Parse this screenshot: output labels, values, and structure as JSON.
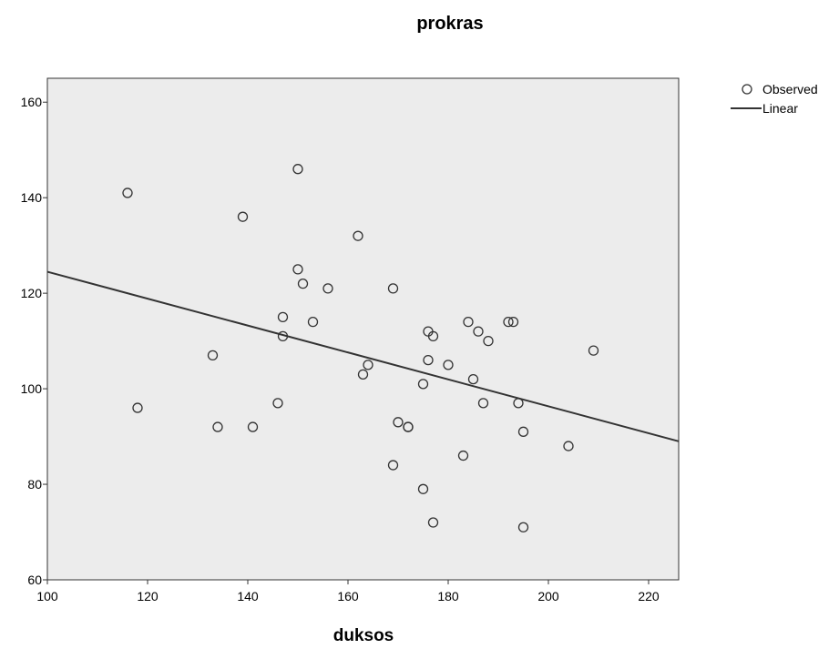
{
  "chart_data": {
    "type": "scatter",
    "title": "prokras",
    "xlabel": "duksos",
    "ylabel": "",
    "xlim": [
      100,
      226
    ],
    "ylim": [
      60,
      165
    ],
    "xticks": [
      100,
      120,
      140,
      160,
      180,
      200,
      220
    ],
    "yticks": [
      60,
      80,
      100,
      120,
      140,
      160
    ],
    "grid": false,
    "legend_position": "top-right",
    "background_color": "#ececec",
    "series": [
      {
        "name": "Observed",
        "marker": "open-circle",
        "points": [
          [
            116,
            141
          ],
          [
            118,
            96
          ],
          [
            133,
            107
          ],
          [
            134,
            92
          ],
          [
            139,
            136
          ],
          [
            141,
            92
          ],
          [
            146,
            97
          ],
          [
            147,
            115
          ],
          [
            147,
            111
          ],
          [
            150,
            146
          ],
          [
            150,
            125
          ],
          [
            151,
            122
          ],
          [
            153,
            114
          ],
          [
            156,
            121
          ],
          [
            162,
            132
          ],
          [
            163,
            103
          ],
          [
            164,
            105
          ],
          [
            169,
            121
          ],
          [
            169,
            84
          ],
          [
            170,
            93
          ],
          [
            172,
            92
          ],
          [
            172,
            92
          ],
          [
            175,
            101
          ],
          [
            175,
            79
          ],
          [
            176,
            112
          ],
          [
            176,
            106
          ],
          [
            177,
            111
          ],
          [
            177,
            72
          ],
          [
            180,
            105
          ],
          [
            183,
            86
          ],
          [
            184,
            114
          ],
          [
            185,
            102
          ],
          [
            186,
            112
          ],
          [
            187,
            97
          ],
          [
            188,
            110
          ],
          [
            192,
            114
          ],
          [
            193,
            114
          ],
          [
            194,
            97
          ],
          [
            195,
            91
          ],
          [
            195,
            71
          ],
          [
            204,
            88
          ],
          [
            209,
            108
          ]
        ]
      },
      {
        "name": "Linear",
        "type": "line",
        "x": [
          100,
          226
        ],
        "y": [
          124.5,
          89
        ]
      }
    ]
  }
}
